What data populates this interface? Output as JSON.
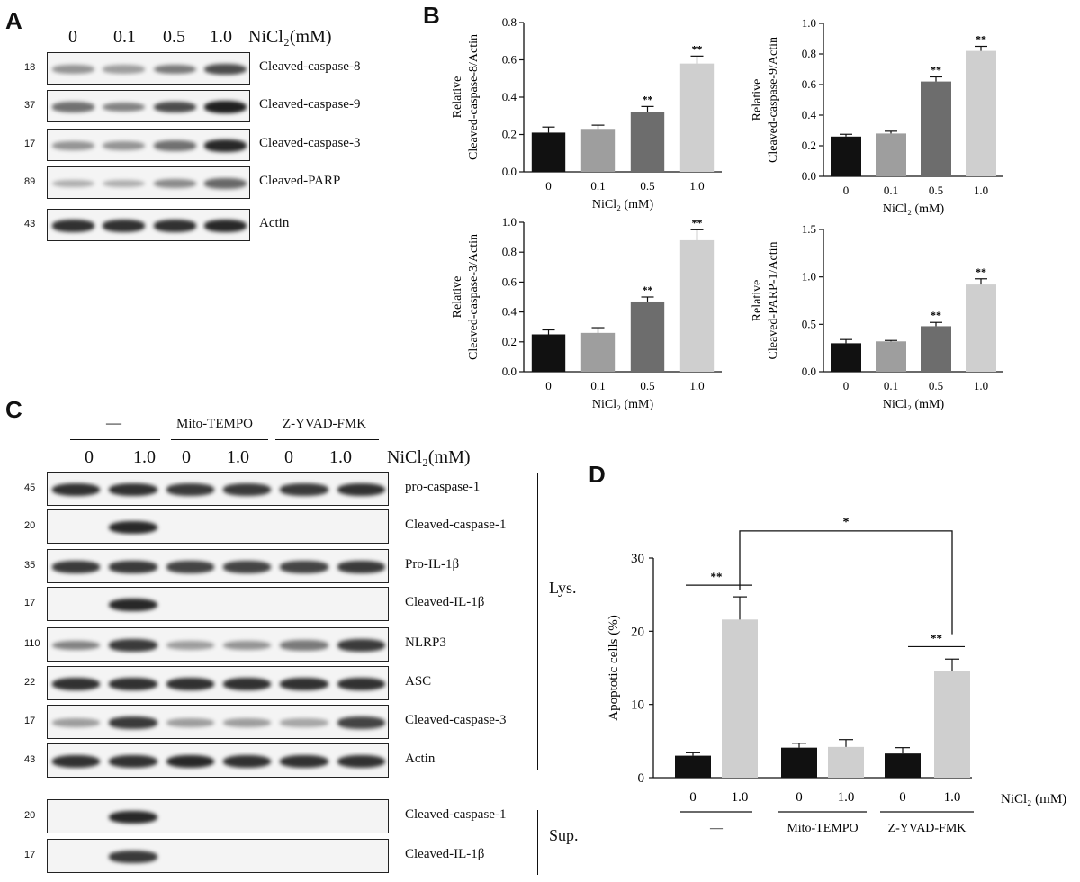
{
  "panels": {
    "a": "A",
    "b": "B",
    "c": "C",
    "d": "D"
  },
  "panel_a": {
    "lanes": [
      "0",
      "0.1",
      "0.5",
      "1.0"
    ],
    "unit": "NiCl₂(mM)",
    "rows": [
      {
        "mw": "18",
        "label": "Cleaved-caspase-8",
        "bands": [
          0.35,
          0.3,
          0.5,
          0.75
        ]
      },
      {
        "mw": "37",
        "label": "Cleaved-caspase-9",
        "bands": [
          0.55,
          0.45,
          0.75,
          1.0
        ]
      },
      {
        "mw": "17",
        "label": "Cleaved-caspase-3",
        "bands": [
          0.35,
          0.35,
          0.55,
          0.95
        ]
      },
      {
        "mw": "89",
        "label": "Cleaved-PARP",
        "bands": [
          0.2,
          0.2,
          0.4,
          0.6
        ]
      },
      {
        "mw": "43",
        "label": "Actin",
        "bands": [
          0.9,
          0.9,
          0.9,
          0.95
        ]
      }
    ]
  },
  "panel_c": {
    "groups": [
      "—",
      "Mito-TEMPO",
      "Z-YVAD-FMK"
    ],
    "lanes": [
      "0",
      "1.0",
      "0",
      "1.0",
      "0",
      "1.0"
    ],
    "unit": "NiCl₂(mM)",
    "lys_label": "Lys.",
    "sup_label": "Sup.",
    "lys_rows": [
      {
        "mw": "45",
        "label": "pro-caspase-1",
        "bands": [
          0.9,
          0.9,
          0.85,
          0.85,
          0.85,
          0.9
        ]
      },
      {
        "mw": "20",
        "label": "Cleaved-caspase-1",
        "bands": [
          0,
          0.95,
          0,
          0,
          0,
          0
        ]
      },
      {
        "mw": "35",
        "label": "Pro-IL-1β",
        "bands": [
          0.85,
          0.85,
          0.8,
          0.8,
          0.8,
          0.85
        ]
      },
      {
        "mw": "17",
        "label": "Cleaved-IL-1β",
        "bands": [
          0,
          0.95,
          0,
          0,
          0,
          0
        ]
      },
      {
        "mw": "110",
        "label": "NLRP3",
        "bands": [
          0.45,
          0.85,
          0.3,
          0.35,
          0.5,
          0.85
        ]
      },
      {
        "mw": "22",
        "label": "ASC",
        "bands": [
          0.9,
          0.9,
          0.9,
          0.9,
          0.9,
          0.9
        ]
      },
      {
        "mw": "17",
        "label": "Cleaved-caspase-3",
        "bands": [
          0.3,
          0.85,
          0.3,
          0.3,
          0.25,
          0.8
        ]
      },
      {
        "mw": "43",
        "label": "Actin",
        "bands": [
          0.9,
          0.9,
          0.95,
          0.9,
          0.9,
          0.9
        ]
      }
    ],
    "sup_rows": [
      {
        "mw": "20",
        "label": "Cleaved-caspase-1",
        "bands": [
          0,
          0.95,
          0,
          0,
          0,
          0
        ]
      },
      {
        "mw": "17",
        "label": "Cleaved-IL-1β",
        "bands": [
          0,
          0.85,
          0,
          0,
          0,
          0
        ]
      }
    ]
  },
  "chart_data": [
    {
      "type": "bar",
      "id": "b1",
      "categories": [
        "0",
        "0.1",
        "0.5",
        "1.0"
      ],
      "values": [
        0.21,
        0.23,
        0.32,
        0.58
      ],
      "errors": [
        0.03,
        0.02,
        0.03,
        0.04
      ],
      "sig": [
        "",
        "",
        "**",
        "**"
      ],
      "ylabel": [
        "Relative",
        "Cleaved-caspase-8/Actin"
      ],
      "xlabel": "NiCl₂ (mM)",
      "ylim": [
        0,
        0.8
      ],
      "yticks": [
        "0.0",
        "0.2",
        "0.4",
        "0.6",
        "0.8"
      ],
      "colors": [
        "#111111",
        "#9e9e9e",
        "#6d6d6d",
        "#cfcfcf"
      ]
    },
    {
      "type": "bar",
      "id": "b2",
      "categories": [
        "0",
        "0.1",
        "0.5",
        "1.0"
      ],
      "values": [
        0.26,
        0.28,
        0.62,
        0.82
      ],
      "errors": [
        0.015,
        0.015,
        0.03,
        0.03
      ],
      "sig": [
        "",
        "",
        "**",
        "**"
      ],
      "ylabel": [
        "Relative",
        "Cleaved-caspase-9/Actin"
      ],
      "xlabel": "NiCl₂ (mM)",
      "ylim": [
        0,
        1.0
      ],
      "yticks": [
        "0.0",
        "0.2",
        "0.4",
        "0.6",
        "0.8",
        "1.0"
      ],
      "colors": [
        "#111111",
        "#9e9e9e",
        "#6d6d6d",
        "#cfcfcf"
      ]
    },
    {
      "type": "bar",
      "id": "b3",
      "categories": [
        "0",
        "0.1",
        "0.5",
        "1.0"
      ],
      "values": [
        0.25,
        0.26,
        0.47,
        0.88
      ],
      "errors": [
        0.03,
        0.035,
        0.03,
        0.07
      ],
      "sig": [
        "",
        "",
        "**",
        "**"
      ],
      "ylabel": [
        "Relative",
        "Cleaved-caspase-3/Actin"
      ],
      "xlabel": "NiCl₂ (mM)",
      "ylim": [
        0,
        1.0
      ],
      "yticks": [
        "0.0",
        "0.2",
        "0.4",
        "0.6",
        "0.8",
        "1.0"
      ],
      "colors": [
        "#111111",
        "#9e9e9e",
        "#6d6d6d",
        "#cfcfcf"
      ]
    },
    {
      "type": "bar",
      "id": "b4",
      "categories": [
        "0",
        "0.1",
        "0.5",
        "1.0"
      ],
      "values": [
        0.3,
        0.32,
        0.48,
        0.92
      ],
      "errors": [
        0.04,
        0.01,
        0.04,
        0.06
      ],
      "sig": [
        "",
        "",
        "**",
        "**"
      ],
      "ylabel": [
        "Relative",
        "Cleaved-PARP-1/Actin"
      ],
      "xlabel": "NiCl₂ (mM)",
      "ylim": [
        0,
        1.5
      ],
      "yticks": [
        "0.0",
        "0.5",
        "1.0",
        "1.5"
      ],
      "colors": [
        "#111111",
        "#9e9e9e",
        "#6d6d6d",
        "#cfcfcf"
      ]
    },
    {
      "type": "bar",
      "id": "d",
      "categories": [
        "0",
        "1.0",
        "0",
        "1.0",
        "0",
        "1.0"
      ],
      "values": [
        3.0,
        21.6,
        4.1,
        4.2,
        3.3,
        14.6
      ],
      "errors": [
        0.4,
        3.1,
        0.6,
        1.0,
        0.8,
        1.6
      ],
      "ylabel": [
        "Apoptotic cells (%)"
      ],
      "xlabel": "NiCl₂ (mM)",
      "groups": [
        "—",
        "Mito-TEMPO",
        "Z-YVAD-FMK"
      ],
      "ylim": [
        0,
        30
      ],
      "yticks": [
        "0",
        "10",
        "20",
        "30"
      ],
      "colors": [
        "#111111",
        "#cfcfcf",
        "#111111",
        "#cfcfcf",
        "#111111",
        "#cfcfcf"
      ],
      "annotations": [
        {
          "from": 0,
          "to": 1,
          "text": "**"
        },
        {
          "from": 4,
          "to": 5,
          "text": "**"
        },
        {
          "from": 1,
          "to": 5,
          "text": "*"
        }
      ]
    }
  ]
}
